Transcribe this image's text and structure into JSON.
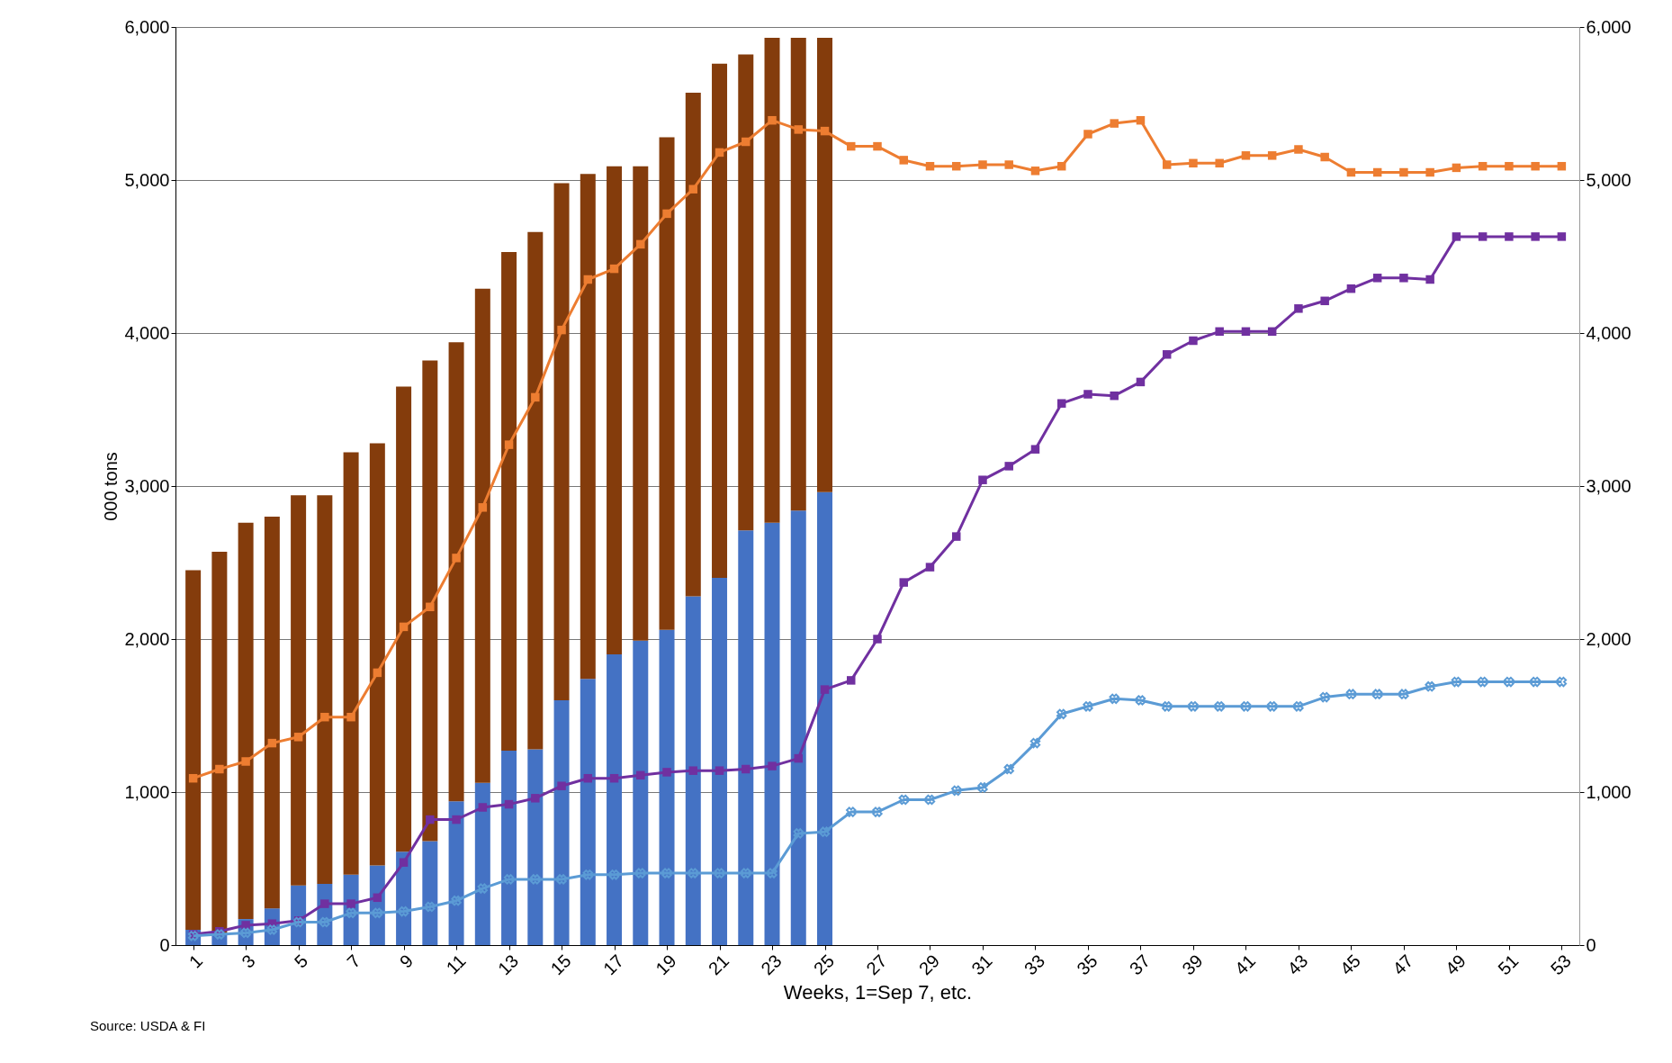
{
  "chart_data": {
    "type": "bar",
    "stacked": true,
    "xlabel": "Weeks, 1=Sep 7, etc.",
    "ylabel": "000 tons",
    "annotations": [
      "Source: USDA & FI"
    ],
    "xlim": [
      0.5,
      53.5
    ],
    "xticks": [
      1,
      3,
      5,
      7,
      9,
      11,
      13,
      15,
      17,
      19,
      21,
      23,
      25,
      27,
      29,
      31,
      33,
      35,
      37,
      39,
      41,
      43,
      45,
      47,
      49,
      51,
      53
    ],
    "ylim": [
      0,
      6000
    ],
    "yticks": [
      0,
      {
        "value": 1000,
        "label": "1,000"
      },
      {
        "value": 2000,
        "label": "2,000"
      },
      {
        "value": 3000,
        "label": "3,000"
      },
      {
        "value": 4000,
        "label": "4,000"
      },
      {
        "value": 5000,
        "label": "5,000"
      },
      {
        "value": 6000,
        "label": "6,000"
      }
    ],
    "y2lim": [
      0,
      6000
    ],
    "y2ticks": [
      0,
      {
        "value": 1000,
        "label": "1,000"
      },
      {
        "value": 2000,
        "label": "2,000"
      },
      {
        "value": 3000,
        "label": "3,000"
      },
      {
        "value": 4000,
        "label": "4,000"
      },
      {
        "value": 5000,
        "label": "5,000"
      },
      {
        "value": 6000,
        "label": "6,000"
      }
    ],
    "grid": "y",
    "series": [
      {
        "color": "#4472c4",
        "x": [
          1,
          2,
          3,
          4,
          5,
          6,
          7,
          8,
          9,
          10,
          11,
          12,
          13,
          14,
          15,
          16,
          17,
          18,
          19,
          20,
          21,
          22,
          23,
          24,
          25
        ],
        "values": [
          100,
          80,
          170,
          240,
          390,
          400,
          460,
          520,
          610,
          680,
          940,
          1060,
          1270,
          1280,
          1600,
          1740,
          1900,
          1990,
          2060,
          2280,
          2400,
          2710,
          2760,
          2840,
          2960
        ]
      },
      {
        "color": "#843c0c",
        "x": [
          1,
          2,
          3,
          4,
          5,
          6,
          7,
          8,
          9,
          10,
          11,
          12,
          13,
          14,
          15,
          16,
          17,
          18,
          19,
          20,
          21,
          22,
          23,
          24,
          25
        ],
        "values": [
          2350,
          2490,
          2590,
          2560,
          2550,
          2540,
          2760,
          2760,
          3040,
          3140,
          3000,
          3230,
          3260,
          3380,
          3380,
          3300,
          3190,
          3100,
          3220,
          3290,
          3360,
          3110,
          3170,
          3090,
          2970
        ]
      },
      {
        "type": "line",
        "color": "#ed7d31",
        "marker": "square",
        "x": [
          1,
          2,
          3,
          4,
          5,
          6,
          7,
          8,
          9,
          10,
          11,
          12,
          13,
          14,
          15,
          16,
          17,
          18,
          19,
          20,
          21,
          22,
          23,
          24,
          25,
          26,
          27,
          28,
          29,
          30,
          31,
          32,
          33,
          34,
          35,
          36,
          37,
          38,
          39,
          40,
          41,
          42,
          43,
          44,
          45,
          46,
          47,
          48,
          49,
          50,
          51,
          52,
          53
        ],
        "values": [
          1090,
          1150,
          1200,
          1320,
          1360,
          1490,
          1490,
          1780,
          2080,
          2210,
          2530,
          2860,
          3270,
          3580,
          4020,
          4350,
          4420,
          4580,
          4780,
          4940,
          5180,
          5250,
          5390,
          5330,
          5320,
          5220,
          5220,
          5130,
          5090,
          5090,
          5100,
          5100,
          5060,
          5090,
          5300,
          5370,
          5390,
          5100,
          5110,
          5110,
          5160,
          5160,
          5200,
          5150,
          5050,
          5050,
          5050,
          5050,
          5080,
          5090,
          5090,
          5090,
          5090
        ]
      },
      {
        "type": "line",
        "color": "#7030a0",
        "marker": "square",
        "x": [
          1,
          2,
          3,
          4,
          5,
          6,
          7,
          8,
          9,
          10,
          11,
          12,
          13,
          14,
          15,
          16,
          17,
          18,
          19,
          20,
          21,
          22,
          23,
          24,
          25,
          26,
          27,
          28,
          29,
          30,
          31,
          32,
          33,
          34,
          35,
          36,
          37,
          38,
          39,
          40,
          41,
          42,
          43,
          44,
          45,
          46,
          47,
          48,
          49,
          50,
          51,
          52,
          53
        ],
        "values": [
          70,
          90,
          130,
          140,
          160,
          270,
          270,
          310,
          540,
          820,
          820,
          900,
          920,
          960,
          1040,
          1090,
          1090,
          1110,
          1130,
          1140,
          1140,
          1150,
          1170,
          1220,
          1670,
          1730,
          2000,
          2370,
          2470,
          2670,
          3040,
          3130,
          3240,
          3540,
          3600,
          3590,
          3680,
          3860,
          3950,
          4010,
          4010,
          4010,
          4160,
          4210,
          4290,
          4360,
          4360,
          4350,
          4630,
          4630,
          4630,
          4630,
          4630
        ]
      },
      {
        "type": "line",
        "color": "#5b9bd5",
        "marker": "cross",
        "x": [
          1,
          2,
          3,
          4,
          5,
          6,
          7,
          8,
          9,
          10,
          11,
          12,
          13,
          14,
          15,
          16,
          17,
          18,
          19,
          20,
          21,
          22,
          23,
          24,
          25,
          26,
          27,
          28,
          29,
          30,
          31,
          32,
          33,
          34,
          35,
          36,
          37,
          38,
          39,
          40,
          41,
          42,
          43,
          44,
          45,
          46,
          47,
          48,
          49,
          50,
          51,
          52,
          53
        ],
        "values": [
          60,
          70,
          80,
          100,
          150,
          150,
          210,
          210,
          220,
          250,
          290,
          370,
          430,
          430,
          430,
          460,
          460,
          470,
          470,
          470,
          470,
          470,
          470,
          730,
          740,
          870,
          870,
          950,
          950,
          1010,
          1030,
          1150,
          1320,
          1510,
          1560,
          1610,
          1600,
          1560,
          1560,
          1560,
          1560,
          1560,
          1560,
          1620,
          1640,
          1640,
          1640,
          1690,
          1720,
          1720,
          1720,
          1720,
          1720
        ]
      }
    ]
  }
}
